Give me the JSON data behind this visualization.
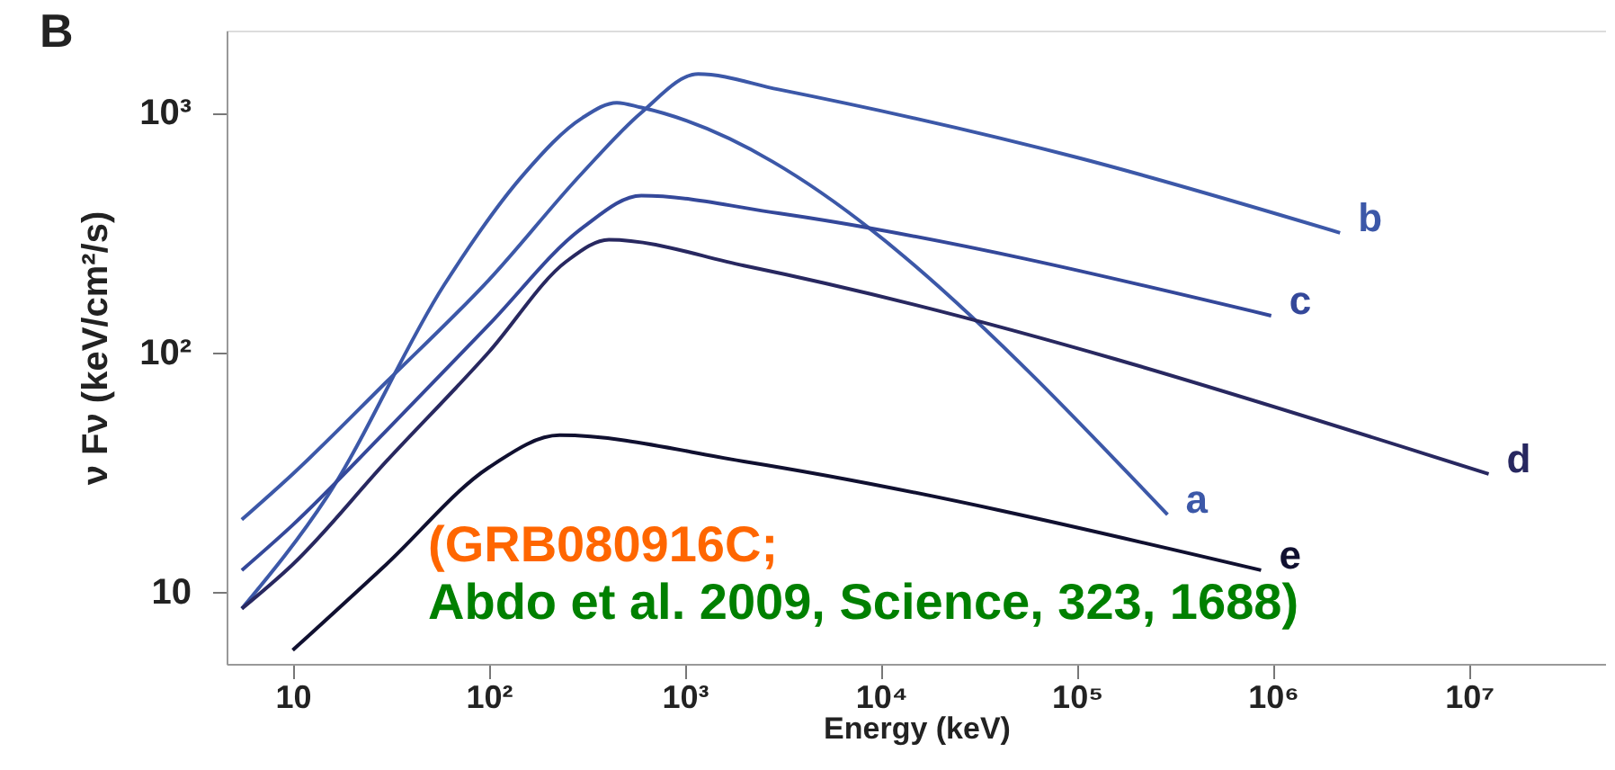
{
  "chart_data": {
    "type": "line",
    "title": "B",
    "xlabel": "Energy   (keV)",
    "ylabel": "ν Fν  (keV/cm²/s)",
    "log": "xy",
    "grid": false,
    "line_style": "solid",
    "marker": "none",
    "xlim": [
      4.6,
      50000000
    ],
    "ylim": [
      5,
      2200
    ],
    "xticks": [
      10,
      {
        "value": 100,
        "label": "10²"
      },
      {
        "value": 1000,
        "label": "10³"
      },
      {
        "value": 10000,
        "label": "10⁴"
      },
      {
        "value": 100000,
        "label": "10⁵"
      },
      {
        "value": 1000000,
        "label": "10⁶"
      },
      {
        "value": 10000000,
        "label": "10⁷"
      }
    ],
    "yticks": [
      10,
      {
        "value": 100,
        "label": "10²"
      },
      {
        "value": 1000,
        "label": "10³"
      }
    ],
    "series": [
      {
        "name": "a",
        "color": "#3c58a8",
        "x": [
          5.5,
          15,
          59,
          150,
          300,
          450,
          600,
          290000
        ],
        "values": [
          8.5,
          25,
          190,
          550,
          950,
          1100,
          1050,
          21
        ]
      },
      {
        "name": "b",
        "color": "#3c58a8",
        "x": [
          5.5,
          10,
          30,
          100,
          300,
          600,
          1170,
          3000,
          100000,
          2200000
        ],
        "values": [
          20,
          31,
          75,
          200,
          560,
          1000,
          1450,
          1250,
          650,
          315
        ]
      },
      {
        "name": "c",
        "color": "#34489a",
        "x": [
          5.5,
          10,
          30,
          100,
          300,
          600,
          3000,
          980000
        ],
        "values": [
          12.3,
          19,
          47,
          130,
          330,
          450,
          380,
          142
        ]
      },
      {
        "name": "d",
        "color": "#282860",
        "x": [
          5.5,
          10,
          30,
          100,
          250,
          410,
          2000,
          12600000
        ],
        "values": [
          8.5,
          13,
          35,
          100,
          240,
          295,
          230,
          31
        ]
      },
      {
        "name": "e",
        "color": "#101030",
        "x": [
          10,
          30,
          100,
          230,
          2000,
          870000
        ],
        "values": [
          5.7,
          13,
          33,
          45,
          35,
          12.3
        ]
      }
    ],
    "annotations": [
      "(GRB080916C;",
      "Abdo et al. 2009, Science, 323, 1688)"
    ]
  }
}
